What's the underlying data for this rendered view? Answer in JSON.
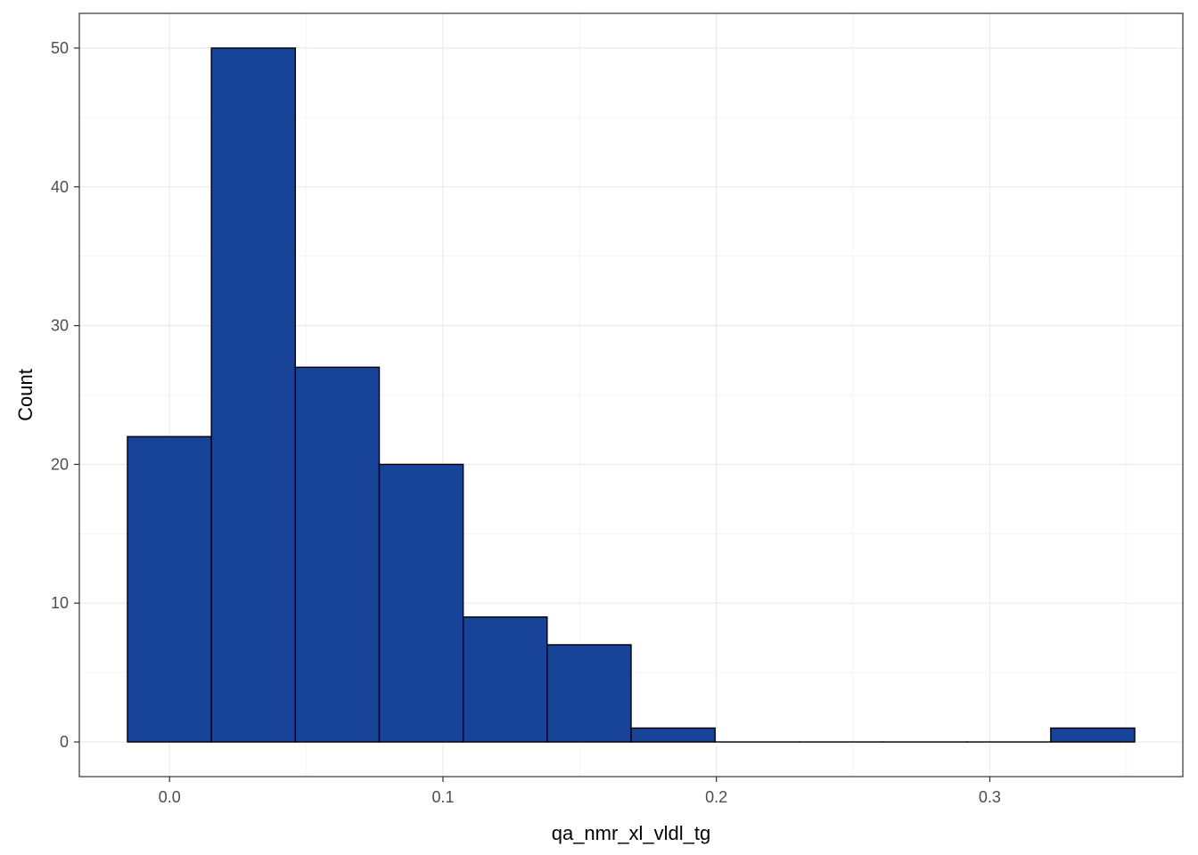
{
  "chart_data": {
    "type": "bar",
    "subtype": "histogram",
    "title": "",
    "xlabel": "qa_nmr_xl_vldl_tg",
    "ylabel": "Count",
    "bin_width": 0.0307,
    "bins": [
      {
        "start": -0.0154,
        "end": 0.0153,
        "count": 22
      },
      {
        "start": 0.0153,
        "end": 0.046,
        "count": 50
      },
      {
        "start": 0.046,
        "end": 0.0767,
        "count": 27
      },
      {
        "start": 0.0767,
        "end": 0.1074,
        "count": 20
      },
      {
        "start": 0.1074,
        "end": 0.1381,
        "count": 9
      },
      {
        "start": 0.1381,
        "end": 0.1688,
        "count": 7
      },
      {
        "start": 0.1688,
        "end": 0.1995,
        "count": 1
      },
      {
        "start": 0.1995,
        "end": 0.2302,
        "count": 0
      },
      {
        "start": 0.2302,
        "end": 0.2609,
        "count": 0
      },
      {
        "start": 0.2609,
        "end": 0.2916,
        "count": 0
      },
      {
        "start": 0.2916,
        "end": 0.3223,
        "count": 0
      },
      {
        "start": 0.3223,
        "end": 0.353,
        "count": 1
      }
    ],
    "xlim": [
      -0.033,
      0.3706
    ],
    "ylim": [
      -2.5,
      52.5
    ],
    "x_ticks": [
      0.0,
      0.1,
      0.2,
      0.3
    ],
    "x_tick_labels": [
      "0.0",
      "0.1",
      "0.2",
      "0.3"
    ],
    "y_ticks": [
      0,
      10,
      20,
      30,
      40,
      50
    ],
    "y_tick_labels": [
      "0",
      "10",
      "20",
      "30",
      "40",
      "50"
    ],
    "grid": true,
    "legend": "none",
    "colors": {
      "bar_fill": "#174499",
      "bar_stroke": "#000000",
      "grid_major": "#ebebeb",
      "grid_minor": "#f5f5f5",
      "panel_border": "#333333",
      "tick_text": "#4d4d4d",
      "axis_title": "#000000"
    }
  }
}
